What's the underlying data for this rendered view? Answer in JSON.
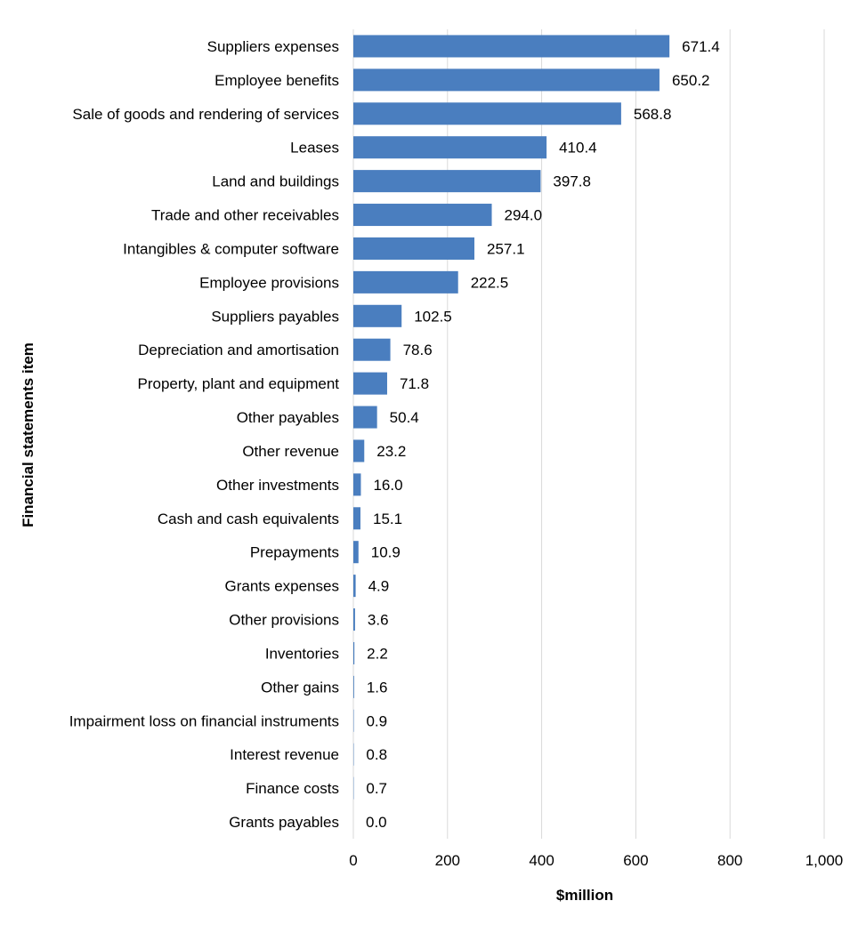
{
  "chart_data": {
    "type": "bar",
    "orientation": "horizontal",
    "title": "",
    "xlabel": "$million",
    "ylabel": "Financial statements item",
    "xlim": [
      0,
      1000
    ],
    "xticks": [
      0,
      200,
      400,
      600,
      800,
      1000
    ],
    "xtick_labels": [
      "0",
      "200",
      "400",
      "600",
      "800",
      "1,000"
    ],
    "grid": "vertical",
    "bar_color": "#4a7ebf",
    "categories": [
      "Suppliers expenses",
      "Employee benefits",
      "Sale of goods and rendering of services",
      "Leases",
      "Land and buildings",
      "Trade and other receivables",
      "Intangibles & computer software",
      "Employee provisions",
      "Suppliers payables",
      "Depreciation and amortisation",
      "Property, plant and equipment",
      "Other payables",
      "Other revenue",
      "Other investments",
      "Cash and cash equivalents",
      "Prepayments",
      "Grants expenses",
      "Other provisions",
      "Inventories",
      "Other gains",
      "Impairment loss on financial instruments",
      "Interest revenue",
      "Finance costs",
      "Grants payables"
    ],
    "values": [
      671.4,
      650.2,
      568.8,
      410.4,
      397.8,
      294.0,
      257.1,
      222.5,
      102.5,
      78.6,
      71.8,
      50.4,
      23.2,
      16.0,
      15.1,
      10.9,
      4.9,
      3.6,
      2.2,
      1.6,
      0.9,
      0.8,
      0.7,
      0.0
    ],
    "value_labels": [
      "671.4",
      "650.2",
      "568.8",
      "410.4",
      "397.8",
      "294.0",
      "257.1",
      "222.5",
      "102.5",
      "78.6",
      "71.8",
      "50.4",
      "23.2",
      "16.0",
      "15.1",
      "10.9",
      "4.9",
      "3.6",
      "2.2",
      "1.6",
      "0.9",
      "0.8",
      "0.7",
      "0.0"
    ]
  }
}
